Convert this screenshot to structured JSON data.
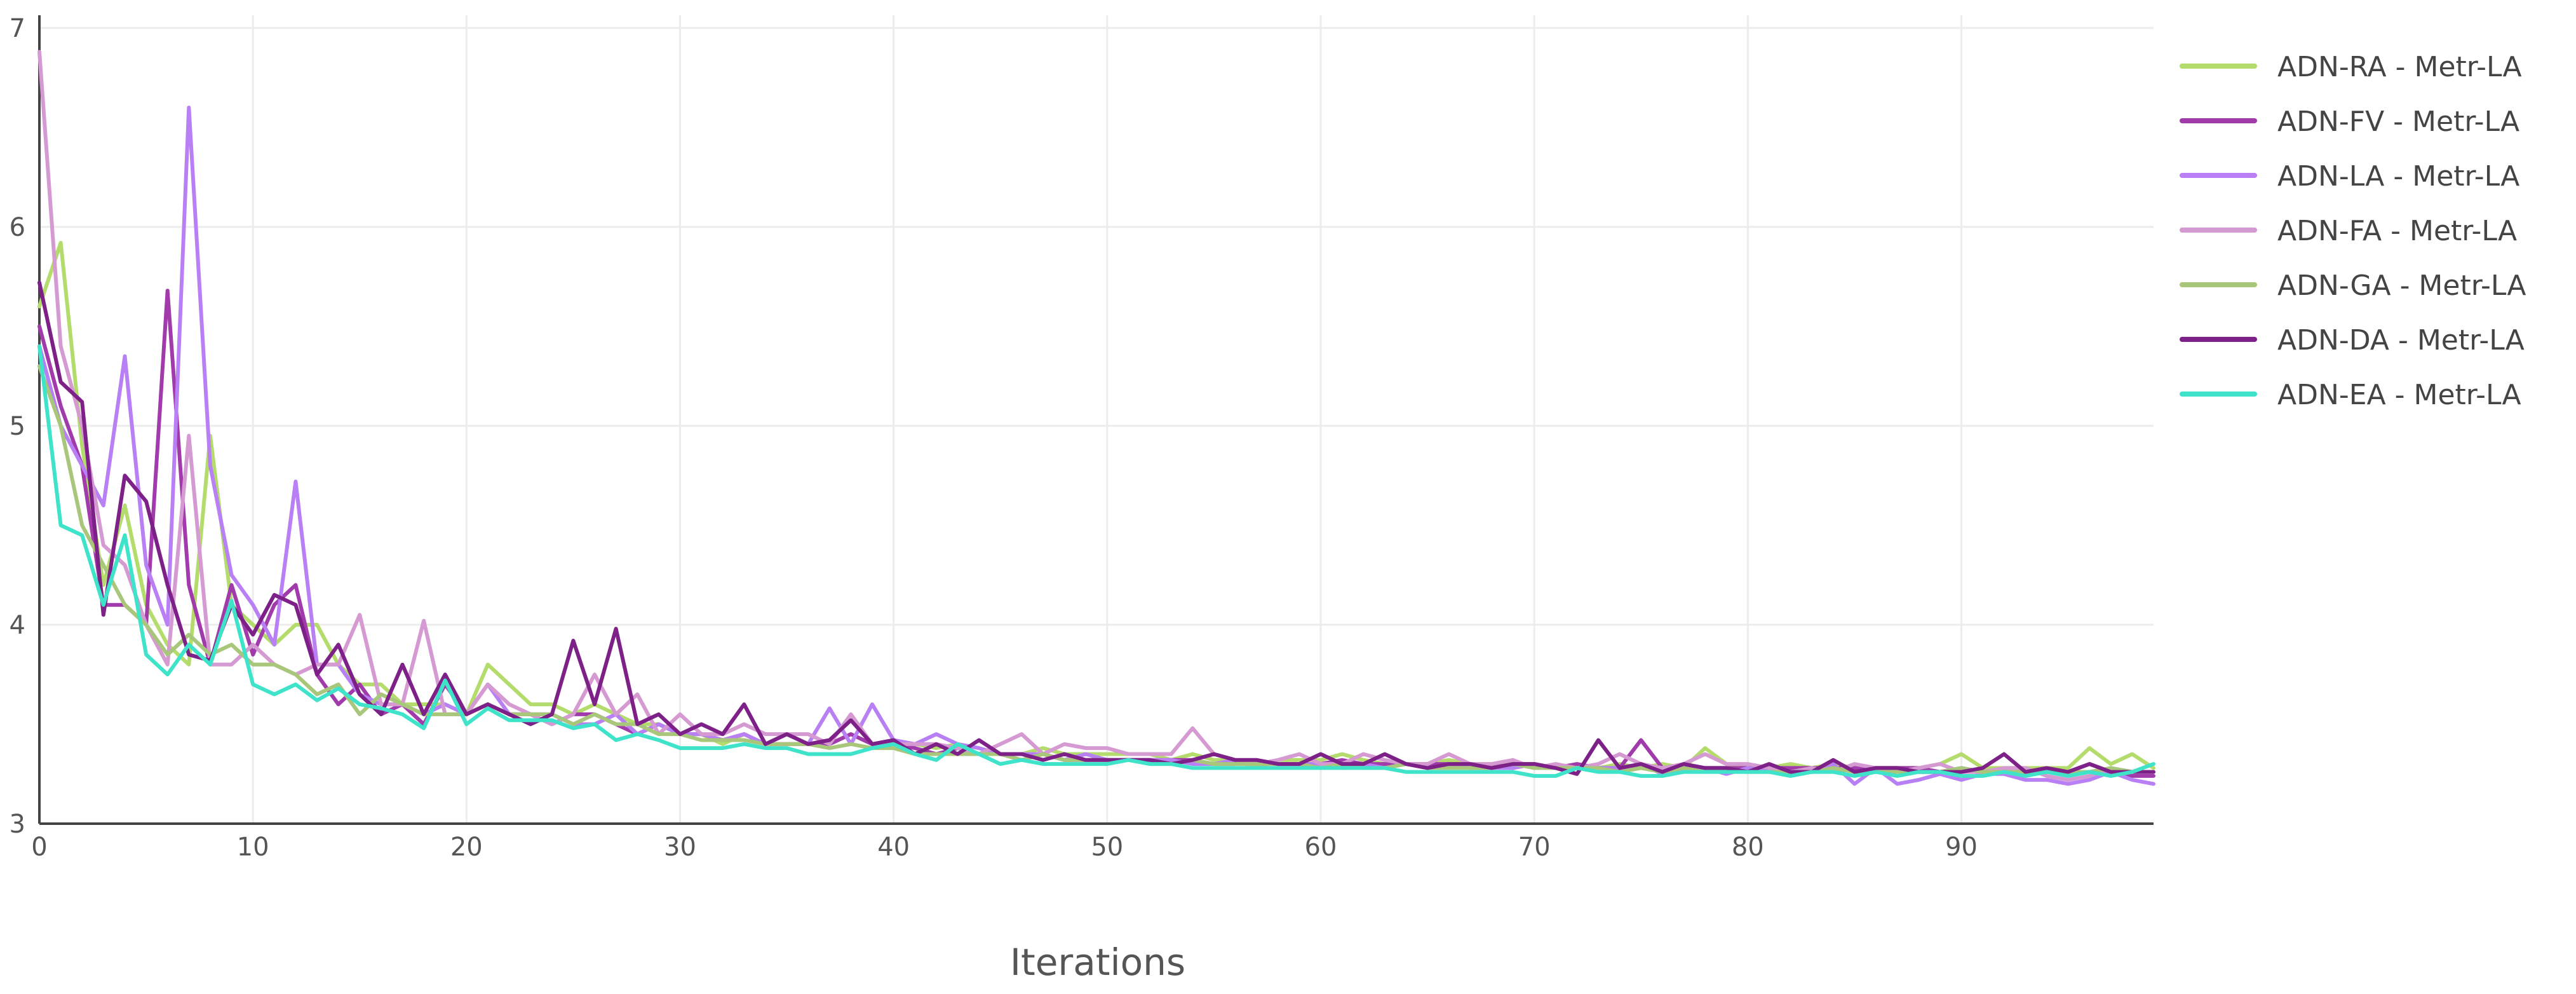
{
  "chart_data": {
    "type": "line",
    "title": "",
    "xlabel": "Iterations",
    "ylabel": "",
    "xlim": [
      0,
      99
    ],
    "ylim": [
      3,
      7
    ],
    "x_ticks": [
      0,
      10,
      20,
      30,
      40,
      50,
      60,
      70,
      80,
      90
    ],
    "y_ticks": [
      3,
      4,
      5,
      6,
      7
    ],
    "grid": true,
    "legend_position": "top-right",
    "series": [
      {
        "name": "ADN-RA - Metr-LA",
        "color": "#b3dc6c",
        "values": [
          5.6,
          5.92,
          4.9,
          4.2,
          4.6,
          4.1,
          3.9,
          3.8,
          4.95,
          4.1,
          4.0,
          3.9,
          4.0,
          4.0,
          3.8,
          3.7,
          3.7,
          3.6,
          3.6,
          3.6,
          3.55,
          3.8,
          3.7,
          3.6,
          3.6,
          3.55,
          3.6,
          3.55,
          3.5,
          3.5,
          3.45,
          3.45,
          3.4,
          3.45,
          3.4,
          3.45,
          3.4,
          3.4,
          3.45,
          3.4,
          3.4,
          3.4,
          3.38,
          3.4,
          3.38,
          3.35,
          3.35,
          3.38,
          3.35,
          3.35,
          3.35,
          3.35,
          3.35,
          3.32,
          3.35,
          3.32,
          3.32,
          3.28,
          3.32,
          3.32,
          3.32,
          3.35,
          3.32,
          3.3,
          3.3,
          3.3,
          3.32,
          3.3,
          3.3,
          3.3,
          3.3,
          3.28,
          3.3,
          3.28,
          3.3,
          3.28,
          3.3,
          3.28,
          3.38,
          3.3,
          3.28,
          3.28,
          3.3,
          3.28,
          3.3,
          3.28,
          3.28,
          3.28,
          3.28,
          3.3,
          3.35,
          3.28,
          3.28,
          3.28,
          3.28,
          3.28,
          3.38,
          3.3,
          3.35,
          3.28
        ]
      },
      {
        "name": "ADN-FV - Metr-LA",
        "color": "#a13bab",
        "values": [
          5.5,
          5.1,
          4.8,
          4.1,
          4.1,
          4.0,
          5.68,
          4.2,
          3.8,
          4.2,
          3.85,
          4.1,
          4.2,
          3.75,
          3.6,
          3.7,
          3.55,
          3.6,
          3.5,
          3.7,
          3.55,
          3.6,
          3.55,
          3.55,
          3.5,
          3.55,
          3.55,
          3.5,
          3.45,
          3.5,
          3.45,
          3.45,
          3.42,
          3.45,
          3.4,
          3.4,
          3.4,
          3.4,
          3.45,
          3.4,
          3.4,
          3.38,
          3.35,
          3.38,
          3.35,
          3.35,
          3.35,
          3.35,
          3.32,
          3.32,
          3.32,
          3.32,
          3.32,
          3.32,
          3.32,
          3.3,
          3.3,
          3.32,
          3.3,
          3.3,
          3.3,
          3.32,
          3.3,
          3.3,
          3.3,
          3.3,
          3.3,
          3.28,
          3.3,
          3.28,
          3.3,
          3.28,
          3.3,
          3.28,
          3.28,
          3.42,
          3.28,
          3.28,
          3.28,
          3.28,
          3.28,
          3.28,
          3.28,
          3.28,
          3.28,
          3.28,
          3.28,
          3.28,
          3.28,
          3.26,
          3.28,
          3.26,
          3.26,
          3.26,
          3.26,
          3.26,
          3.3,
          3.26,
          3.24,
          3.24
        ]
      },
      {
        "name": "ADN-LA - Metr-LA",
        "color": "#b980f5",
        "values": [
          5.4,
          5.0,
          4.8,
          4.6,
          5.35,
          4.3,
          4.0,
          6.6,
          4.8,
          4.25,
          4.1,
          3.9,
          4.72,
          3.8,
          3.8,
          3.65,
          3.6,
          3.6,
          3.55,
          3.6,
          3.55,
          3.7,
          3.55,
          3.55,
          3.55,
          3.5,
          3.5,
          3.55,
          3.45,
          3.5,
          3.45,
          3.45,
          3.42,
          3.45,
          3.4,
          3.45,
          3.4,
          3.58,
          3.4,
          3.6,
          3.42,
          3.4,
          3.45,
          3.4,
          3.38,
          3.35,
          3.35,
          3.35,
          3.32,
          3.35,
          3.32,
          3.32,
          3.32,
          3.32,
          3.3,
          3.3,
          3.32,
          3.3,
          3.3,
          3.3,
          3.3,
          3.28,
          3.3,
          3.28,
          3.3,
          3.28,
          3.3,
          3.28,
          3.28,
          3.28,
          3.3,
          3.28,
          3.28,
          3.28,
          3.28,
          3.3,
          3.25,
          3.26,
          3.28,
          3.25,
          3.28,
          3.26,
          3.26,
          3.26,
          3.3,
          3.2,
          3.28,
          3.2,
          3.22,
          3.25,
          3.22,
          3.25,
          3.25,
          3.22,
          3.22,
          3.2,
          3.22,
          3.26,
          3.22,
          3.2
        ]
      },
      {
        "name": "ADN-FA - Metr-LA",
        "color": "#d59ad2",
        "values": [
          6.88,
          5.4,
          5.0,
          4.4,
          4.3,
          4.0,
          3.8,
          4.95,
          3.8,
          3.8,
          3.9,
          3.8,
          3.75,
          3.8,
          3.8,
          4.05,
          3.6,
          3.6,
          4.02,
          3.55,
          3.55,
          3.7,
          3.6,
          3.55,
          3.5,
          3.55,
          3.75,
          3.55,
          3.65,
          3.45,
          3.55,
          3.45,
          3.45,
          3.5,
          3.45,
          3.45,
          3.45,
          3.4,
          3.55,
          3.4,
          3.4,
          3.4,
          3.4,
          3.38,
          3.35,
          3.4,
          3.45,
          3.35,
          3.4,
          3.38,
          3.38,
          3.35,
          3.35,
          3.35,
          3.48,
          3.35,
          3.32,
          3.3,
          3.32,
          3.35,
          3.3,
          3.3,
          3.35,
          3.32,
          3.3,
          3.3,
          3.35,
          3.3,
          3.3,
          3.32,
          3.28,
          3.3,
          3.28,
          3.3,
          3.35,
          3.3,
          3.28,
          3.3,
          3.35,
          3.3,
          3.3,
          3.28,
          3.26,
          3.28,
          3.26,
          3.3,
          3.28,
          3.26,
          3.28,
          3.3,
          3.26,
          3.26,
          3.28,
          3.28,
          3.24,
          3.22,
          3.24,
          3.28,
          3.26,
          3.26
        ]
      },
      {
        "name": "ADN-GA - Metr-LA",
        "color": "#a8c77a",
        "values": [
          5.3,
          5.0,
          4.5,
          4.3,
          4.1,
          4.0,
          3.85,
          3.95,
          3.85,
          3.9,
          3.8,
          3.8,
          3.75,
          3.65,
          3.7,
          3.55,
          3.65,
          3.6,
          3.55,
          3.55,
          3.55,
          3.6,
          3.55,
          3.55,
          3.55,
          3.5,
          3.55,
          3.5,
          3.5,
          3.45,
          3.45,
          3.42,
          3.42,
          3.42,
          3.4,
          3.4,
          3.4,
          3.38,
          3.4,
          3.38,
          3.38,
          3.35,
          3.35,
          3.35,
          3.35,
          3.35,
          3.32,
          3.35,
          3.32,
          3.32,
          3.32,
          3.32,
          3.3,
          3.3,
          3.32,
          3.3,
          3.3,
          3.3,
          3.3,
          3.3,
          3.28,
          3.3,
          3.28,
          3.28,
          3.3,
          3.28,
          3.28,
          3.28,
          3.28,
          3.3,
          3.28,
          3.28,
          3.28,
          3.28,
          3.26,
          3.28,
          3.26,
          3.28,
          3.26,
          3.28,
          3.26,
          3.26,
          3.26,
          3.26,
          3.28,
          3.26,
          3.26,
          3.26,
          3.26,
          3.26,
          3.28,
          3.26,
          3.26,
          3.26,
          3.26,
          3.26,
          3.26,
          3.28,
          3.26,
          3.26
        ]
      },
      {
        "name": "ADN-DA - Metr-LA",
        "color": "#7d2188",
        "values": [
          5.72,
          5.22,
          5.12,
          4.05,
          4.75,
          4.62,
          4.2,
          3.85,
          3.82,
          4.1,
          3.95,
          4.15,
          4.1,
          3.75,
          3.9,
          3.65,
          3.55,
          3.8,
          3.55,
          3.75,
          3.55,
          3.6,
          3.55,
          3.5,
          3.55,
          3.92,
          3.6,
          3.98,
          3.5,
          3.55,
          3.45,
          3.5,
          3.45,
          3.6,
          3.4,
          3.45,
          3.4,
          3.42,
          3.52,
          3.4,
          3.42,
          3.35,
          3.4,
          3.35,
          3.42,
          3.35,
          3.35,
          3.32,
          3.35,
          3.32,
          3.32,
          3.32,
          3.32,
          3.3,
          3.32,
          3.35,
          3.32,
          3.32,
          3.3,
          3.3,
          3.35,
          3.3,
          3.3,
          3.35,
          3.3,
          3.28,
          3.3,
          3.3,
          3.28,
          3.3,
          3.3,
          3.28,
          3.25,
          3.42,
          3.28,
          3.3,
          3.26,
          3.3,
          3.28,
          3.28,
          3.26,
          3.3,
          3.26,
          3.26,
          3.32,
          3.26,
          3.28,
          3.28,
          3.26,
          3.26,
          3.26,
          3.28,
          3.35,
          3.26,
          3.28,
          3.26,
          3.3,
          3.26,
          3.26,
          3.26
        ]
      },
      {
        "name": "ADN-EA - Metr-LA",
        "color": "#3ee3c9",
        "values": [
          5.4,
          4.5,
          4.45,
          4.1,
          4.45,
          3.85,
          3.75,
          3.9,
          3.8,
          4.12,
          3.7,
          3.65,
          3.7,
          3.62,
          3.68,
          3.6,
          3.58,
          3.55,
          3.48,
          3.72,
          3.5,
          3.58,
          3.52,
          3.52,
          3.52,
          3.48,
          3.5,
          3.42,
          3.45,
          3.42,
          3.38,
          3.38,
          3.38,
          3.4,
          3.38,
          3.38,
          3.35,
          3.35,
          3.35,
          3.38,
          3.4,
          3.35,
          3.32,
          3.4,
          3.35,
          3.3,
          3.32,
          3.3,
          3.3,
          3.3,
          3.3,
          3.32,
          3.3,
          3.3,
          3.28,
          3.28,
          3.28,
          3.28,
          3.28,
          3.28,
          3.28,
          3.28,
          3.28,
          3.28,
          3.26,
          3.26,
          3.26,
          3.26,
          3.26,
          3.26,
          3.24,
          3.24,
          3.28,
          3.26,
          3.26,
          3.24,
          3.24,
          3.26,
          3.26,
          3.26,
          3.26,
          3.26,
          3.24,
          3.26,
          3.26,
          3.24,
          3.26,
          3.24,
          3.26,
          3.26,
          3.24,
          3.24,
          3.26,
          3.24,
          3.26,
          3.24,
          3.26,
          3.24,
          3.26,
          3.3
        ]
      }
    ]
  }
}
